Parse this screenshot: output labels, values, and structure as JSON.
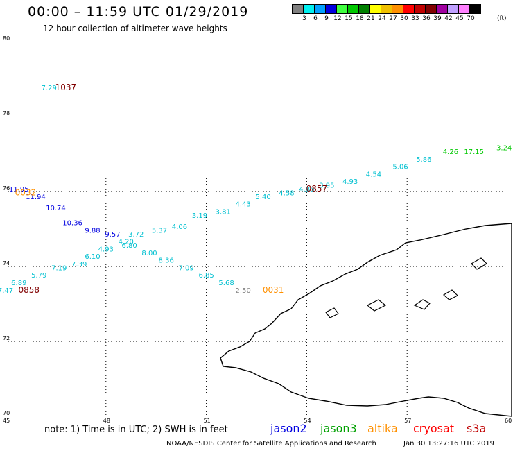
{
  "title": "00:00 – 11:59 UTC 01/29/2019",
  "subtitle": "12 hour collection of altimeter wave heights",
  "colorbar": {
    "colors": [
      "#808080",
      "#00f0f0",
      "#00a0ff",
      "#0000e0",
      "#40ff40",
      "#00c800",
      "#008000",
      "#ffff00",
      "#f0c000",
      "#ff9000",
      "#ff0000",
      "#c00000",
      "#800000",
      "#a000a0",
      "#c0a0ff",
      "#ff80ff",
      "#000000"
    ],
    "labels": [
      "3",
      "6",
      "9",
      "12",
      "15",
      "18",
      "21",
      "24",
      "27",
      "30",
      "33",
      "36",
      "39",
      "42",
      "45",
      "70"
    ],
    "unit": "(ft)"
  },
  "map": {
    "lat_range": [
      70,
      80
    ],
    "lon_range": [
      45,
      60
    ],
    "lat_labels": [
      "80",
      "78",
      "76",
      "74",
      "72",
      "70"
    ],
    "lon_labels": [
      "45",
      "48",
      "51",
      "54",
      "57",
      "60"
    ],
    "land_color": "#000000",
    "grid": "dotted"
  },
  "chart_data": {
    "type": "scatter",
    "series": [
      {
        "name": "jason2",
        "color": "#0000e0",
        "values": [
          {
            "lon": 45.4,
            "lat": 76.0,
            "v": "11.95"
          },
          {
            "lon": 45.9,
            "lat": 75.8,
            "v": "11.94"
          },
          {
            "lon": 46.5,
            "lat": 75.5,
            "v": "10.74"
          },
          {
            "lon": 47.0,
            "lat": 75.1,
            "v": "10.36"
          },
          {
            "lon": 47.6,
            "lat": 74.9,
            "v": "9.88"
          },
          {
            "lon": 48.2,
            "lat": 74.8,
            "v": "9.57"
          }
        ]
      },
      {
        "name": "jason3",
        "color": "#00c800",
        "values": [
          {
            "lon": 59.9,
            "lat": 77.1,
            "v": "3.24"
          },
          {
            "lon": 59.0,
            "lat": 77.0,
            "v": "17.15"
          },
          {
            "lon": 58.3,
            "lat": 77.0,
            "v": "4.26"
          }
        ]
      },
      {
        "name": "altimeter-cyan",
        "color": "#00c0d0",
        "values": [
          {
            "lon": 46.3,
            "lat": 78.7,
            "v": "7.29"
          },
          {
            "lon": 57.5,
            "lat": 76.8,
            "v": "5.86"
          },
          {
            "lon": 56.8,
            "lat": 76.6,
            "v": "5.06"
          },
          {
            "lon": 56.0,
            "lat": 76.4,
            "v": "4.54"
          },
          {
            "lon": 55.3,
            "lat": 76.2,
            "v": "4.93"
          },
          {
            "lon": 54.6,
            "lat": 76.1,
            "v": "3.95"
          },
          {
            "lon": 54.0,
            "lat": 76.0,
            "v": "4.86"
          },
          {
            "lon": 53.4,
            "lat": 75.9,
            "v": "4.58"
          },
          {
            "lon": 52.7,
            "lat": 75.8,
            "v": "5.40"
          },
          {
            "lon": 52.1,
            "lat": 75.6,
            "v": "4.43"
          },
          {
            "lon": 51.5,
            "lat": 75.4,
            "v": "3.81"
          },
          {
            "lon": 50.8,
            "lat": 75.3,
            "v": "3.19"
          },
          {
            "lon": 50.2,
            "lat": 75.0,
            "v": "4.06"
          },
          {
            "lon": 49.6,
            "lat": 74.9,
            "v": "5.37"
          },
          {
            "lon": 48.9,
            "lat": 74.8,
            "v": "3.72"
          },
          {
            "lon": 48.6,
            "lat": 74.6,
            "v": "4.20"
          },
          {
            "lon": 48.7,
            "lat": 74.5,
            "v": "6.80"
          },
          {
            "lon": 48.0,
            "lat": 74.4,
            "v": "4.93"
          },
          {
            "lon": 47.6,
            "lat": 74.2,
            "v": "6.10"
          },
          {
            "lon": 49.3,
            "lat": 74.3,
            "v": "8.00"
          },
          {
            "lon": 49.8,
            "lat": 74.1,
            "v": "8.36"
          },
          {
            "lon": 47.2,
            "lat": 74.0,
            "v": "7.39"
          },
          {
            "lon": 46.6,
            "lat": 73.9,
            "v": "7.19"
          },
          {
            "lon": 50.4,
            "lat": 73.9,
            "v": "7.09"
          },
          {
            "lon": 46.0,
            "lat": 73.7,
            "v": "5.79"
          },
          {
            "lon": 51.0,
            "lat": 73.7,
            "v": "6.85"
          },
          {
            "lon": 45.4,
            "lat": 73.5,
            "v": "6.89"
          },
          {
            "lon": 51.6,
            "lat": 73.5,
            "v": "5.68"
          },
          {
            "lon": 45.0,
            "lat": 73.3,
            "v": "7.47"
          }
        ]
      },
      {
        "name": "gray",
        "color": "#808080",
        "values": [
          {
            "lon": 52.1,
            "lat": 73.3,
            "v": "2.50"
          }
        ]
      }
    ],
    "time_labels": [
      {
        "text": "1037",
        "color": "#800000",
        "lon": 46.8,
        "lat": 78.7
      },
      {
        "text": "0857",
        "color": "#800000",
        "lon": 54.3,
        "lat": 76.0
      },
      {
        "text": "0032",
        "color": "#ff9000",
        "lon": 45.6,
        "lat": 75.9
      },
      {
        "text": "0031",
        "color": "#ff9000",
        "lon": 53.0,
        "lat": 73.3
      },
      {
        "text": "0858",
        "color": "#800000",
        "lon": 45.7,
        "lat": 73.3
      }
    ]
  },
  "footer": {
    "note": "note:  1) Time is in UTC;  2) SWH is in feet",
    "satellites": [
      {
        "name": "jason2",
        "color": "#0000e0"
      },
      {
        "name": "jason3",
        "color": "#00a000"
      },
      {
        "name": "altika",
        "color": "#ff9000"
      },
      {
        "name": "cryosat",
        "color": "#ff0000"
      },
      {
        "name": "s3a",
        "color": "#c00000"
      }
    ],
    "credit": "NOAA/NESDIS Center for Satellite Applications and Research",
    "timestamp": "Jan 30 13:27:16 UTC 2019"
  }
}
